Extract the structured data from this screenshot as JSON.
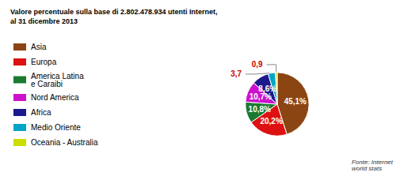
{
  "chart_data": {
    "type": "pie",
    "title": "Valore percentuale sulla base di 2.802.478.934 utenti Internet,\nal 31 dicembre 2013",
    "categories": [
      "Asia",
      "Europa",
      "America Latina\ne Caraibi",
      "Nord America",
      "Africa",
      "Medio Oriente",
      "Oceania - Australia"
    ],
    "values": [
      45.1,
      20.2,
      10.8,
      10.7,
      8.6,
      3.7,
      0.9
    ],
    "value_labels": [
      "45,1%",
      "20,2%",
      "10,8%",
      "10,7%",
      "8,6%",
      "3,7",
      "0,9"
    ],
    "colors": [
      "#8B4513",
      "#DD1111",
      "#1A7A30",
      "#CC11CC",
      "#1A1A8E",
      "#00A5C8",
      "#CCDD00"
    ],
    "data_labels": true,
    "legend": "left",
    "annotations": [
      "Fonte: Internet\nworld stats"
    ]
  }
}
